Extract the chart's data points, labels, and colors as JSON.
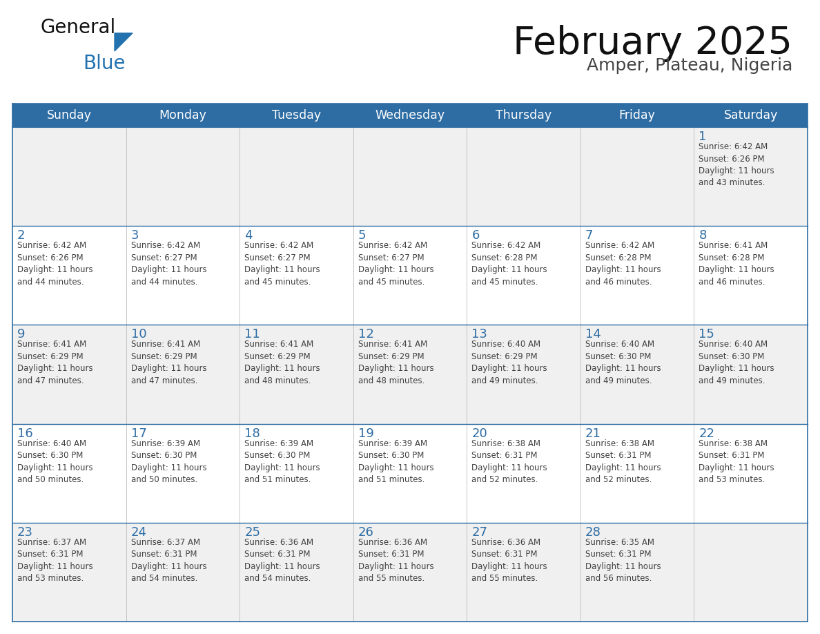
{
  "title": "February 2025",
  "subtitle": "Amper, Plateau, Nigeria",
  "days_of_week": [
    "Sunday",
    "Monday",
    "Tuesday",
    "Wednesday",
    "Thursday",
    "Friday",
    "Saturday"
  ],
  "header_bg": "#2E6DA4",
  "header_text": "#FFFFFF",
  "cell_bg_odd": "#F0F0F0",
  "cell_bg_even": "#FFFFFF",
  "line_color": "#2E6DA4",
  "day_num_color": "#2E6DA4",
  "cell_text_color": "#404040",
  "title_color": "#111111",
  "subtitle_color": "#444444",
  "logo_general_color": "#111111",
  "logo_blue_color": "#2372B0",
  "weeks": [
    {
      "days": [
        {
          "date": null,
          "info": null
        },
        {
          "date": null,
          "info": null
        },
        {
          "date": null,
          "info": null
        },
        {
          "date": null,
          "info": null
        },
        {
          "date": null,
          "info": null
        },
        {
          "date": null,
          "info": null
        },
        {
          "date": 1,
          "info": "Sunrise: 6:42 AM\nSunset: 6:26 PM\nDaylight: 11 hours\nand 43 minutes."
        }
      ]
    },
    {
      "days": [
        {
          "date": 2,
          "info": "Sunrise: 6:42 AM\nSunset: 6:26 PM\nDaylight: 11 hours\nand 44 minutes."
        },
        {
          "date": 3,
          "info": "Sunrise: 6:42 AM\nSunset: 6:27 PM\nDaylight: 11 hours\nand 44 minutes."
        },
        {
          "date": 4,
          "info": "Sunrise: 6:42 AM\nSunset: 6:27 PM\nDaylight: 11 hours\nand 45 minutes."
        },
        {
          "date": 5,
          "info": "Sunrise: 6:42 AM\nSunset: 6:27 PM\nDaylight: 11 hours\nand 45 minutes."
        },
        {
          "date": 6,
          "info": "Sunrise: 6:42 AM\nSunset: 6:28 PM\nDaylight: 11 hours\nand 45 minutes."
        },
        {
          "date": 7,
          "info": "Sunrise: 6:42 AM\nSunset: 6:28 PM\nDaylight: 11 hours\nand 46 minutes."
        },
        {
          "date": 8,
          "info": "Sunrise: 6:41 AM\nSunset: 6:28 PM\nDaylight: 11 hours\nand 46 minutes."
        }
      ]
    },
    {
      "days": [
        {
          "date": 9,
          "info": "Sunrise: 6:41 AM\nSunset: 6:29 PM\nDaylight: 11 hours\nand 47 minutes."
        },
        {
          "date": 10,
          "info": "Sunrise: 6:41 AM\nSunset: 6:29 PM\nDaylight: 11 hours\nand 47 minutes."
        },
        {
          "date": 11,
          "info": "Sunrise: 6:41 AM\nSunset: 6:29 PM\nDaylight: 11 hours\nand 48 minutes."
        },
        {
          "date": 12,
          "info": "Sunrise: 6:41 AM\nSunset: 6:29 PM\nDaylight: 11 hours\nand 48 minutes."
        },
        {
          "date": 13,
          "info": "Sunrise: 6:40 AM\nSunset: 6:29 PM\nDaylight: 11 hours\nand 49 minutes."
        },
        {
          "date": 14,
          "info": "Sunrise: 6:40 AM\nSunset: 6:30 PM\nDaylight: 11 hours\nand 49 minutes."
        },
        {
          "date": 15,
          "info": "Sunrise: 6:40 AM\nSunset: 6:30 PM\nDaylight: 11 hours\nand 49 minutes."
        }
      ]
    },
    {
      "days": [
        {
          "date": 16,
          "info": "Sunrise: 6:40 AM\nSunset: 6:30 PM\nDaylight: 11 hours\nand 50 minutes."
        },
        {
          "date": 17,
          "info": "Sunrise: 6:39 AM\nSunset: 6:30 PM\nDaylight: 11 hours\nand 50 minutes."
        },
        {
          "date": 18,
          "info": "Sunrise: 6:39 AM\nSunset: 6:30 PM\nDaylight: 11 hours\nand 51 minutes."
        },
        {
          "date": 19,
          "info": "Sunrise: 6:39 AM\nSunset: 6:30 PM\nDaylight: 11 hours\nand 51 minutes."
        },
        {
          "date": 20,
          "info": "Sunrise: 6:38 AM\nSunset: 6:31 PM\nDaylight: 11 hours\nand 52 minutes."
        },
        {
          "date": 21,
          "info": "Sunrise: 6:38 AM\nSunset: 6:31 PM\nDaylight: 11 hours\nand 52 minutes."
        },
        {
          "date": 22,
          "info": "Sunrise: 6:38 AM\nSunset: 6:31 PM\nDaylight: 11 hours\nand 53 minutes."
        }
      ]
    },
    {
      "days": [
        {
          "date": 23,
          "info": "Sunrise: 6:37 AM\nSunset: 6:31 PM\nDaylight: 11 hours\nand 53 minutes."
        },
        {
          "date": 24,
          "info": "Sunrise: 6:37 AM\nSunset: 6:31 PM\nDaylight: 11 hours\nand 54 minutes."
        },
        {
          "date": 25,
          "info": "Sunrise: 6:36 AM\nSunset: 6:31 PM\nDaylight: 11 hours\nand 54 minutes."
        },
        {
          "date": 26,
          "info": "Sunrise: 6:36 AM\nSunset: 6:31 PM\nDaylight: 11 hours\nand 55 minutes."
        },
        {
          "date": 27,
          "info": "Sunrise: 6:36 AM\nSunset: 6:31 PM\nDaylight: 11 hours\nand 55 minutes."
        },
        {
          "date": 28,
          "info": "Sunrise: 6:35 AM\nSunset: 6:31 PM\nDaylight: 11 hours\nand 56 minutes."
        },
        {
          "date": null,
          "info": null
        }
      ]
    }
  ]
}
